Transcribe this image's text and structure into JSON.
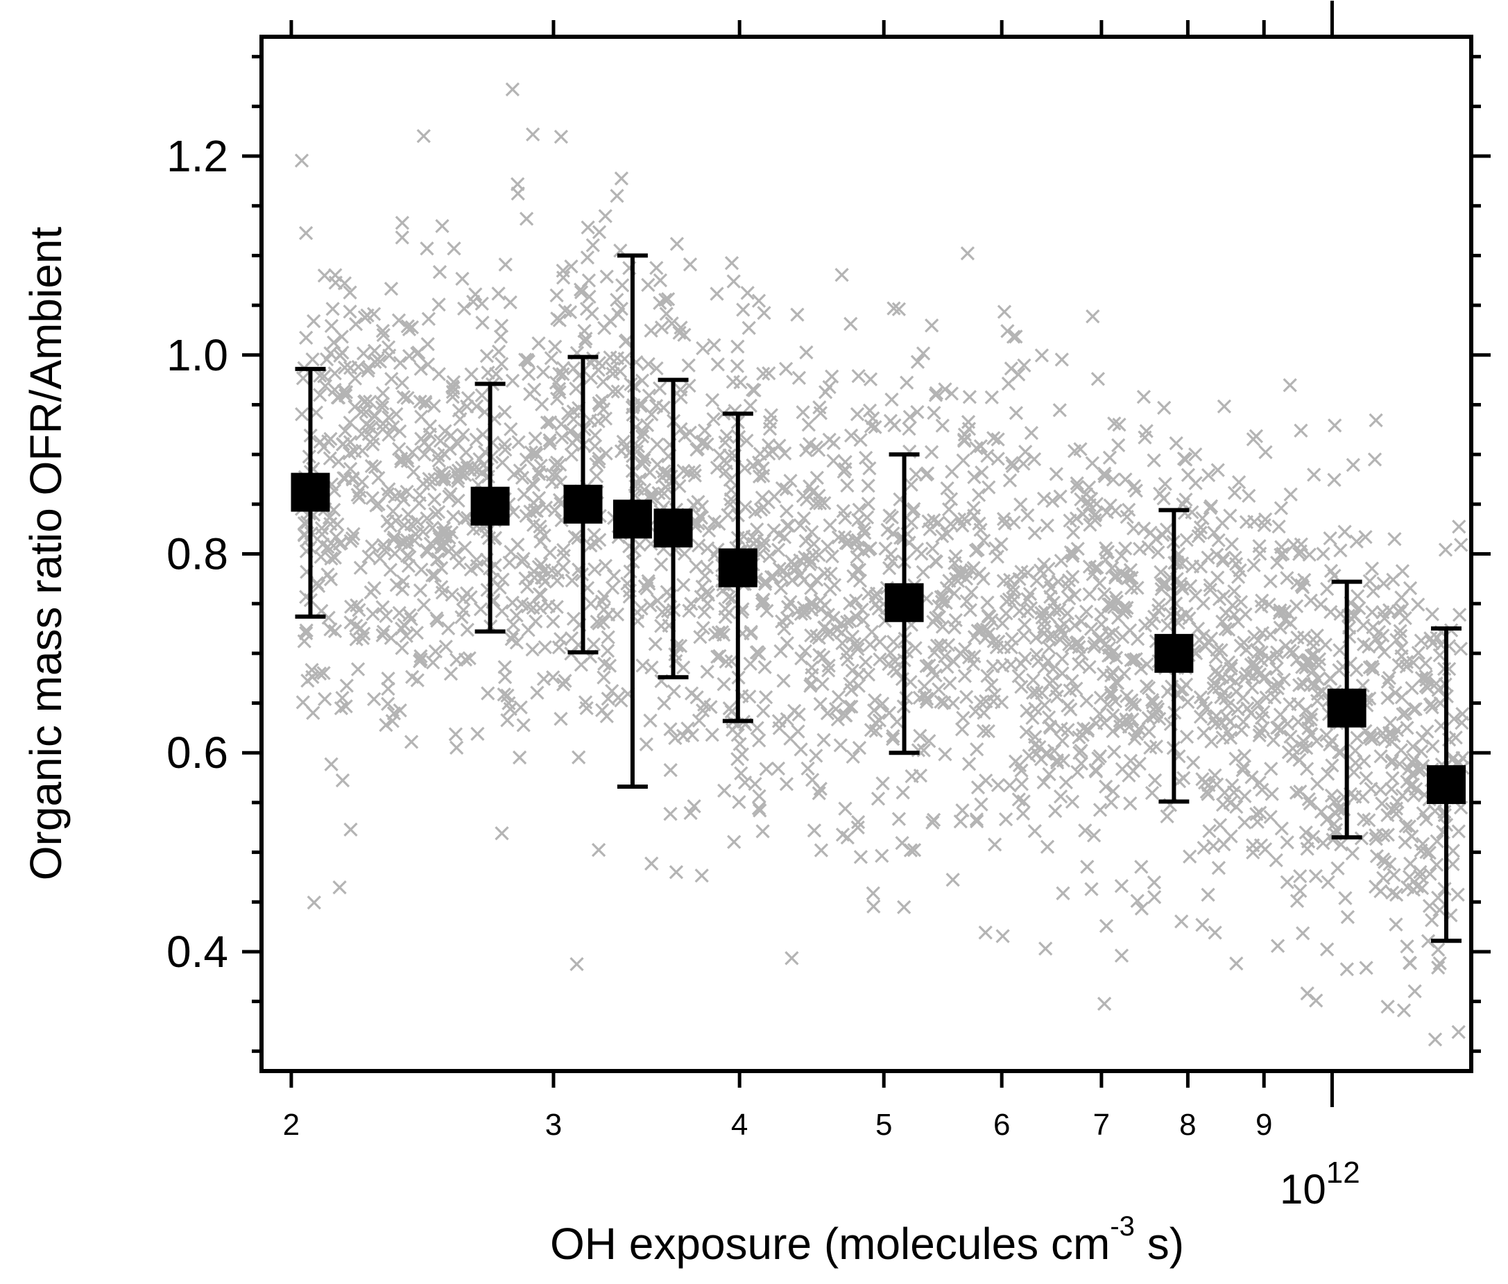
{
  "chart_data": {
    "type": "scatter",
    "title": "",
    "xlabel": "OH exposure (molecules cm",
    "xlabel_exponent": "-3",
    "xlabel_suffix": " s)",
    "ylabel": "Organic mass ratio OFR/Ambient",
    "x_scale": "log",
    "x_multiplier_label": "10",
    "x_multiplier_exponent": "12",
    "xlim": [
      1.91,
      12.4
    ],
    "ylim": [
      0.28,
      1.32
    ],
    "x_ticks": [
      {
        "value": 2,
        "label": "2"
      },
      {
        "value": 3,
        "label": "3"
      },
      {
        "value": 4,
        "label": "4"
      },
      {
        "value": 5,
        "label": "5"
      },
      {
        "value": 6,
        "label": "6"
      },
      {
        "value": 7,
        "label": "7"
      },
      {
        "value": 8,
        "label": "8"
      },
      {
        "value": 9,
        "label": "9"
      },
      {
        "value": 10,
        "label": ""
      }
    ],
    "y_ticks": [
      {
        "value": 0.4,
        "label": "0.4"
      },
      {
        "value": 0.6,
        "label": "0.6"
      },
      {
        "value": 0.8,
        "label": "0.8"
      },
      {
        "value": 1.0,
        "label": "1.0"
      },
      {
        "value": 1.2,
        "label": "1.2"
      }
    ],
    "grid": false,
    "legend": "none",
    "series": [
      {
        "kind": "scatter-background",
        "marker": "x",
        "color": "#b4b4b4",
        "approx_points": 2600,
        "density_profile": [
          {
            "x": 2.0,
            "center": 0.87,
            "spread": 0.15
          },
          {
            "x": 2.5,
            "center": 0.85,
            "spread": 0.15
          },
          {
            "x": 3.0,
            "center": 0.86,
            "spread": 0.17
          },
          {
            "x": 3.5,
            "center": 0.83,
            "spread": 0.18
          },
          {
            "x": 4.0,
            "center": 0.78,
            "spread": 0.16
          },
          {
            "x": 5.0,
            "center": 0.75,
            "spread": 0.15
          },
          {
            "x": 6.0,
            "center": 0.74,
            "spread": 0.14
          },
          {
            "x": 7.0,
            "center": 0.72,
            "spread": 0.14
          },
          {
            "x": 8.0,
            "center": 0.7,
            "spread": 0.14
          },
          {
            "x": 9.0,
            "center": 0.67,
            "spread": 0.14
          },
          {
            "x": 10.0,
            "center": 0.64,
            "spread": 0.14
          },
          {
            "x": 11.0,
            "center": 0.6,
            "spread": 0.14
          },
          {
            "x": 12.0,
            "center": 0.57,
            "spread": 0.15
          }
        ]
      },
      {
        "kind": "binned-mean",
        "marker": "square",
        "color": "#000000",
        "points": [
          {
            "x": 2.06,
            "y": 0.862,
            "low": 0.737,
            "high": 0.986
          },
          {
            "x": 2.72,
            "y": 0.848,
            "low": 0.722,
            "high": 0.971
          },
          {
            "x": 3.14,
            "y": 0.85,
            "low": 0.701,
            "high": 0.998
          },
          {
            "x": 3.39,
            "y": 0.835,
            "low": 0.566,
            "high": 1.1
          },
          {
            "x": 3.61,
            "y": 0.826,
            "low": 0.676,
            "high": 0.975
          },
          {
            "x": 3.99,
            "y": 0.786,
            "low": 0.632,
            "high": 0.941
          },
          {
            "x": 5.16,
            "y": 0.751,
            "low": 0.6,
            "high": 0.9
          },
          {
            "x": 7.83,
            "y": 0.7,
            "low": 0.551,
            "high": 0.844
          },
          {
            "x": 10.23,
            "y": 0.645,
            "low": 0.515,
            "high": 0.772
          },
          {
            "x": 11.93,
            "y": 0.568,
            "low": 0.411,
            "high": 0.725
          }
        ]
      }
    ]
  }
}
